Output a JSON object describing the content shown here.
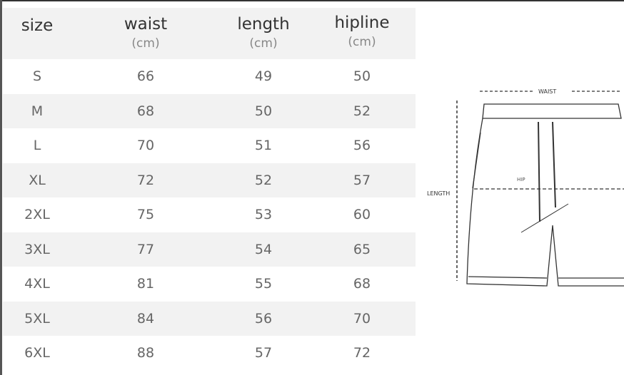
{
  "table": {
    "headers": [
      {
        "name": "size",
        "unit": ""
      },
      {
        "name": "waist",
        "unit": "(cm)"
      },
      {
        "name": "length",
        "unit": "(cm)"
      },
      {
        "name": "hipline",
        "unit": "(cm)"
      }
    ],
    "rows": [
      [
        "S",
        "66",
        "49",
        "50"
      ],
      [
        "M",
        "68",
        "50",
        "52"
      ],
      [
        "L",
        "70",
        "51",
        "56"
      ],
      [
        "XL",
        "72",
        "52",
        "57"
      ],
      [
        "2XL",
        "75",
        "53",
        "60"
      ],
      [
        "3XL",
        "77",
        "54",
        "65"
      ],
      [
        "4XL",
        "81",
        "55",
        "68"
      ],
      [
        "5XL",
        "84",
        "56",
        "70"
      ],
      [
        "6XL",
        "88",
        "57",
        "72"
      ]
    ]
  },
  "diagram": {
    "waist_label": "WAIST",
    "hip_label": "HIP",
    "length_label": "LENGTH"
  }
}
